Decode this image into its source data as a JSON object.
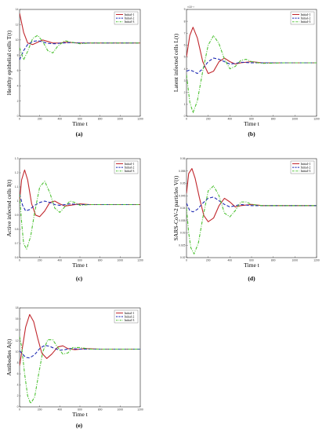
{
  "figure": {
    "legend_labels": [
      "Initial-1",
      "Initial-2",
      "Initial-3"
    ],
    "series_colors": [
      "#c1272d",
      "#1f2bb3",
      "#4ec234"
    ],
    "series_styles": [
      "solid",
      "dashed",
      "dashdot"
    ]
  },
  "chart_data": [
    {
      "type": "line",
      "panel_label": "(a)",
      "xlabel": "Time t",
      "ylabel": "Healthy epithelial cells T(t)",
      "xlim": [
        0,
        1200
      ],
      "x_ticks": [
        "0",
        "200",
        "400",
        "600",
        "800",
        "1000",
        "1200"
      ],
      "ylim": [
        0,
        14
      ],
      "y_ticks": [
        "0",
        "2",
        "4",
        "6",
        "8",
        "10",
        "12",
        "14"
      ],
      "y_multiplier": "",
      "legend_position": "top-right",
      "series": [
        {
          "name": "Initial-1",
          "x": [
            0,
            40,
            80,
            130,
            180,
            230,
            280,
            330,
            400,
            450,
            520,
            600,
            700,
            900,
            1200
          ],
          "y": [
            13.5,
            11.0,
            9.6,
            9.4,
            9.7,
            10.0,
            9.8,
            9.6,
            9.6,
            9.7,
            9.65,
            9.6,
            9.6,
            9.6,
            9.6
          ]
        },
        {
          "name": "Initial-2",
          "x": [
            0,
            40,
            80,
            130,
            180,
            230,
            280,
            350,
            420,
            500,
            600,
            700,
            900,
            1200
          ],
          "y": [
            7.4,
            8.6,
            9.4,
            9.8,
            9.9,
            9.75,
            9.55,
            9.5,
            9.6,
            9.65,
            9.6,
            9.6,
            9.6,
            9.6
          ]
        },
        {
          "name": "Initial-3",
          "x": [
            0,
            40,
            80,
            130,
            180,
            230,
            280,
            330,
            380,
            450,
            520,
            600,
            700,
            900,
            1200
          ],
          "y": [
            9.0,
            7.4,
            8.5,
            10.2,
            10.6,
            9.8,
            8.6,
            8.3,
            9.2,
            9.9,
            9.7,
            9.5,
            9.6,
            9.6,
            9.6
          ]
        }
      ]
    },
    {
      "type": "line",
      "panel_label": "(b)",
      "xlabel": "Time t",
      "ylabel": "Latent infected cells L(t)",
      "xlim": [
        0,
        1200
      ],
      "x_ticks": [
        "0",
        "200",
        "400",
        "600",
        "800",
        "1000",
        "1200"
      ],
      "ylim": [
        0,
        9
      ],
      "y_ticks": [
        "0",
        "1",
        "2",
        "3",
        "4",
        "5",
        "6",
        "7",
        "8",
        "9"
      ],
      "y_multiplier": "×10⁻³",
      "legend_position": "top-right",
      "series": [
        {
          "name": "Initial-1",
          "x": [
            0,
            30,
            60,
            100,
            150,
            200,
            250,
            300,
            350,
            400,
            450,
            500,
            600,
            700,
            900,
            1200
          ],
          "y": [
            5.0,
            6.8,
            7.5,
            6.6,
            4.6,
            3.6,
            3.8,
            4.6,
            4.9,
            4.6,
            4.4,
            4.5,
            4.6,
            4.5,
            4.5,
            4.5
          ]
        },
        {
          "name": "Initial-2",
          "x": [
            0,
            30,
            60,
            100,
            150,
            200,
            250,
            300,
            350,
            400,
            450,
            500,
            600,
            700,
            900,
            1200
          ],
          "y": [
            3.8,
            3.9,
            3.8,
            3.6,
            4.0,
            4.6,
            4.9,
            4.8,
            4.6,
            4.4,
            4.45,
            4.55,
            4.5,
            4.5,
            4.5,
            4.5
          ]
        },
        {
          "name": "Initial-3",
          "x": [
            0,
            30,
            60,
            100,
            150,
            200,
            250,
            300,
            350,
            400,
            450,
            500,
            550,
            600,
            700,
            900,
            1200
          ],
          "y": [
            3.5,
            1.2,
            0.3,
            1.3,
            3.8,
            6.0,
            6.8,
            6.1,
            4.8,
            4.0,
            4.2,
            4.7,
            4.8,
            4.6,
            4.45,
            4.5,
            4.5
          ]
        }
      ]
    },
    {
      "type": "line",
      "panel_label": "(c)",
      "xlabel": "Time t",
      "ylabel": "Active infected cells I(t)",
      "xlim": [
        0,
        1200
      ],
      "x_ticks": [
        "0",
        "200",
        "400",
        "600",
        "800",
        "1000",
        "1200"
      ],
      "ylim": [
        0.6,
        1.3
      ],
      "y_ticks": [
        "0.6",
        "0.7",
        "0.8",
        "0.9",
        "1",
        "1.1",
        "1.2",
        "1.3"
      ],
      "y_multiplier": "",
      "legend_position": "top-right",
      "series": [
        {
          "name": "Initial-1",
          "x": [
            0,
            20,
            50,
            80,
            120,
            160,
            200,
            250,
            300,
            350,
            400,
            450,
            500,
            600,
            700,
            900,
            1200
          ],
          "y": [
            1.0,
            1.15,
            1.22,
            1.15,
            0.98,
            0.9,
            0.89,
            0.93,
            0.99,
            1.0,
            0.98,
            0.965,
            0.97,
            0.98,
            0.975,
            0.975,
            0.975
          ]
        },
        {
          "name": "Initial-2",
          "x": [
            0,
            30,
            60,
            100,
            150,
            200,
            250,
            300,
            350,
            400,
            450,
            500,
            600,
            700,
            900,
            1200
          ],
          "y": [
            1.05,
            0.97,
            0.93,
            0.94,
            0.97,
            0.99,
            1.0,
            0.99,
            0.975,
            0.97,
            0.975,
            0.98,
            0.975,
            0.975,
            0.975,
            0.975
          ]
        },
        {
          "name": "Initial-3",
          "x": [
            0,
            20,
            40,
            70,
            110,
            150,
            200,
            250,
            300,
            350,
            400,
            450,
            500,
            550,
            600,
            700,
            900,
            1200
          ],
          "y": [
            1.05,
            0.85,
            0.7,
            0.66,
            0.75,
            0.92,
            1.1,
            1.14,
            1.06,
            0.95,
            0.92,
            0.96,
            1.0,
            0.99,
            0.97,
            0.975,
            0.975,
            0.975
          ]
        }
      ]
    },
    {
      "type": "line",
      "panel_label": "(d)",
      "xlabel": "Time t",
      "ylabel": "SARS-CoV-2 particles V(t)",
      "xlim": [
        0,
        1200
      ],
      "x_ticks": [
        "0",
        "200",
        "400",
        "600",
        "800",
        "1000",
        "1200"
      ],
      "ylim": [
        0.02,
        0.06
      ],
      "y_ticks": [
        "0.02",
        "0.025",
        "0.03",
        "0.035",
        "0.04",
        "0.045",
        "0.05",
        "0.055",
        "0.06"
      ],
      "y_multiplier": "",
      "legend_position": "top-right",
      "series": [
        {
          "name": "Initial-1",
          "x": [
            0,
            20,
            50,
            80,
            120,
            160,
            200,
            250,
            300,
            350,
            400,
            450,
            500,
            600,
            700,
            900,
            1200
          ],
          "y": [
            0.046,
            0.054,
            0.056,
            0.052,
            0.044,
            0.037,
            0.0345,
            0.036,
            0.041,
            0.044,
            0.0425,
            0.0405,
            0.041,
            0.0415,
            0.041,
            0.041,
            0.041
          ]
        },
        {
          "name": "Initial-2",
          "x": [
            0,
            30,
            60,
            100,
            150,
            200,
            250,
            300,
            350,
            400,
            450,
            500,
            600,
            700,
            900,
            1200
          ],
          "y": [
            0.042,
            0.039,
            0.0385,
            0.0395,
            0.042,
            0.044,
            0.0445,
            0.043,
            0.0415,
            0.0405,
            0.041,
            0.0415,
            0.041,
            0.041,
            0.041,
            0.041
          ]
        },
        {
          "name": "Initial-3",
          "x": [
            0,
            20,
            40,
            70,
            110,
            150,
            200,
            250,
            300,
            350,
            400,
            450,
            500,
            550,
            600,
            700,
            900,
            1200
          ],
          "y": [
            0.04,
            0.03,
            0.024,
            0.0215,
            0.026,
            0.036,
            0.047,
            0.049,
            0.045,
            0.038,
            0.0365,
            0.039,
            0.0425,
            0.0425,
            0.0415,
            0.041,
            0.041,
            0.041
          ]
        }
      ]
    },
    {
      "type": "line",
      "panel_label": "(e)",
      "xlabel": "Time t",
      "ylabel": "Antibodies A(t)",
      "xlim": [
        0,
        1200
      ],
      "x_ticks": [
        "0",
        "200",
        "400",
        "600",
        "800",
        "1000",
        "1200"
      ],
      "ylim": [
        0,
        18
      ],
      "y_ticks": [
        "0",
        "2",
        "4",
        "6",
        "8",
        "10",
        "12",
        "14",
        "16",
        "18"
      ],
      "y_multiplier": "",
      "legend_position": "top-right",
      "series": [
        {
          "name": "Initial-1",
          "x": [
            0,
            30,
            60,
            100,
            140,
            180,
            220,
            270,
            320,
            380,
            430,
            480,
            550,
            650,
            800,
            1000,
            1200
          ],
          "y": [
            7.5,
            11.0,
            14.5,
            16.8,
            15.5,
            12.5,
            9.8,
            8.8,
            9.6,
            10.9,
            11.1,
            10.6,
            10.4,
            10.6,
            10.5,
            10.5,
            10.5
          ]
        },
        {
          "name": "Initial-2",
          "x": [
            0,
            30,
            60,
            100,
            150,
            200,
            250,
            300,
            350,
            400,
            450,
            500,
            600,
            700,
            900,
            1200
          ],
          "y": [
            10.2,
            9.6,
            9.0,
            8.9,
            9.5,
            10.6,
            11.2,
            11.0,
            10.6,
            10.3,
            10.4,
            10.6,
            10.5,
            10.5,
            10.5,
            10.5
          ]
        },
        {
          "name": "Initial-3",
          "x": [
            0,
            20,
            50,
            80,
            110,
            150,
            190,
            230,
            280,
            330,
            380,
            430,
            480,
            530,
            600,
            700,
            900,
            1200
          ],
          "y": [
            12.8,
            11.0,
            6.0,
            2.0,
            0.6,
            1.8,
            6.0,
            10.0,
            12.2,
            12.2,
            10.8,
            9.6,
            9.8,
            10.8,
            10.8,
            10.5,
            10.5,
            10.5
          ]
        }
      ]
    }
  ]
}
